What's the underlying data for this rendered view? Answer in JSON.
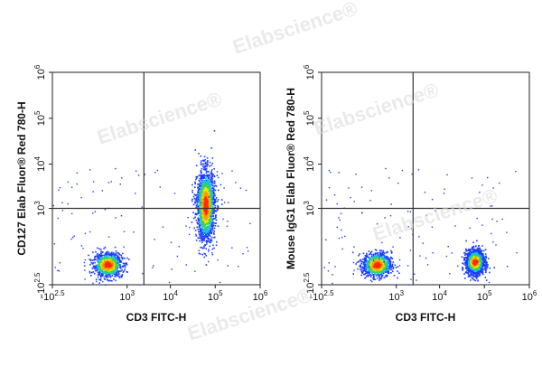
{
  "watermark": "Elabscience®",
  "chart_data": [
    {
      "type": "scatter",
      "xlabel": "CD3 FITC-H",
      "ylabel": "CD127 Elab Fluor® Red 780-H",
      "x_ticks": [
        "-10^2.5",
        "10^3",
        "10^4",
        "10^5",
        "10^6"
      ],
      "y_ticks": [
        "-10^2.5",
        "10^3",
        "10^4",
        "10^5",
        "10^6"
      ],
      "xlim": [
        "-10^2.5",
        "10^6"
      ],
      "ylim": [
        "-10^2.5",
        "10^6"
      ],
      "quadrant_gate": {
        "x": 2500,
        "y": 1000
      },
      "populations": [
        {
          "x_center": 300,
          "y_center": -50,
          "density": "medium"
        },
        {
          "x_center": 60000,
          "y_center": 1200,
          "density": "high"
        }
      ]
    },
    {
      "type": "scatter",
      "xlabel": "CD3 FITC-H",
      "ylabel": "Mouse IgG1 Elab Fluor® Red 780-H",
      "x_ticks": [
        "-10^2.5",
        "10^3",
        "10^4",
        "10^5",
        "10^6"
      ],
      "y_ticks": [
        "-10^2.5",
        "10^3",
        "10^4",
        "10^5",
        "10^6"
      ],
      "xlim": [
        "-10^2.5",
        "10^6"
      ],
      "ylim": [
        "-10^2.5",
        "10^6"
      ],
      "quadrant_gate": {
        "x": 2500,
        "y": 1000
      },
      "populations": [
        {
          "x_center": 300,
          "y_center": -50,
          "density": "medium"
        },
        {
          "x_center": 60000,
          "y_center": -30,
          "density": "high"
        }
      ]
    }
  ]
}
